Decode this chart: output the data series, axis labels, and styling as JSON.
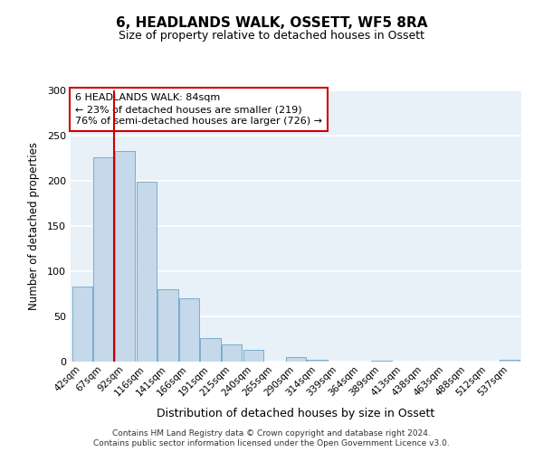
{
  "title": "6, HEADLANDS WALK, OSSETT, WF5 8RA",
  "subtitle": "Size of property relative to detached houses in Ossett",
  "xlabel": "Distribution of detached houses by size in Ossett",
  "ylabel": "Number of detached properties",
  "bar_labels": [
    "42sqm",
    "67sqm",
    "92sqm",
    "116sqm",
    "141sqm",
    "166sqm",
    "191sqm",
    "215sqm",
    "240sqm",
    "265sqm",
    "290sqm",
    "314sqm",
    "339sqm",
    "364sqm",
    "389sqm",
    "413sqm",
    "438sqm",
    "463sqm",
    "488sqm",
    "512sqm",
    "537sqm"
  ],
  "bar_values": [
    83,
    226,
    233,
    199,
    80,
    70,
    26,
    19,
    13,
    0,
    5,
    2,
    0,
    0,
    1,
    0,
    0,
    0,
    0,
    0,
    2
  ],
  "bar_color": "#c5d9ea",
  "bar_edge_color": "#7aadcc",
  "background_color": "#e8f0f8",
  "grid_color": "#ffffff",
  "vline_color": "#cc0000",
  "annotation_text": "6 HEADLANDS WALK: 84sqm\n← 23% of detached houses are smaller (219)\n76% of semi-detached houses are larger (726) →",
  "annotation_box_edgecolor": "#cc0000",
  "annotation_text_color": "#000000",
  "ylim": [
    0,
    300
  ],
  "yticks": [
    0,
    50,
    100,
    150,
    200,
    250,
    300
  ],
  "footer_line1": "Contains HM Land Registry data © Crown copyright and database right 2024.",
  "footer_line2": "Contains public sector information licensed under the Open Government Licence v3.0."
}
